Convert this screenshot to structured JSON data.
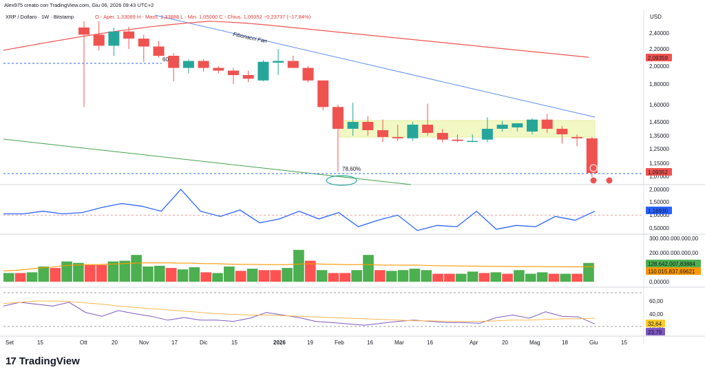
{
  "header": {
    "creator": "Alex975 creato con TradingView.com, Giu 06, 2026 09:43 UTC+2",
    "symbol": "XRP / Dollaro · 1W · Bitstamp",
    "ohlc": "O - Aper. 1,33089  H - Mass. 1,33888  L - Min. 1,05000  C - Chius. 1,09352  −0,23737 (−17,84%)",
    "currency": "USD"
  },
  "annotations": {
    "fibonacci_fan": "Fibonacci Fan",
    "fib_level_60": "60",
    "fib_level_78": "78,60%"
  },
  "price_axis": {
    "ticks": [
      "2,40000",
      "2,20000",
      "2,00000",
      "1,80000",
      "1,60000",
      "1,45000",
      "1,35000",
      "1,25000",
      "1,15000",
      "1,07000"
    ],
    "ma_value": "2,09359",
    "last_price": "1,09352"
  },
  "indicator_axis": {
    "ticks": [
      "2,00000",
      "1,50000",
      "1,00000",
      "0,50000"
    ],
    "current": "1,16930"
  },
  "volume_axis": {
    "ticks": [
      "300.000.000.000,00",
      "200.000.000.000,00",
      "100.000.000.000,00",
      "0,00000"
    ],
    "volume": "128.642.007,83884",
    "volume_ma": "110.015.837,69621"
  },
  "rsi_axis": {
    "ticks": [
      "60,00",
      "40,00",
      "20,00"
    ],
    "ma_value": "32,64",
    "rsi_value": "23,79"
  },
  "time_axis": [
    "Set",
    "15",
    "Ott",
    "20",
    "Nov",
    "17",
    "Dic",
    "15",
    "2026",
    "19",
    "Feb",
    "16",
    "Mar",
    "16",
    "Apr",
    "20",
    "Mag",
    "18",
    "Giu",
    "15"
  ],
  "brand": "TradingView",
  "colors": {
    "up": "#26a69a",
    "down": "#ef5350",
    "ma_line": "#ef5350",
    "fan": "#5b8def",
    "green_line": "#43a047",
    "indicator": "#2962ff",
    "vol_up": "#4caf50",
    "vol_down": "#ff5252",
    "vol_ma": "#ff9800",
    "rsi": "#7e57c2",
    "rsi_ma": "#ffb74d",
    "zone": "#f1f8c4"
  },
  "chart_data": {
    "type": "candlestick",
    "candles": [
      {
        "o": 2.47,
        "h": 2.55,
        "l": 1.58,
        "c": 2.38
      },
      {
        "o": 2.38,
        "h": 2.55,
        "l": 2.18,
        "c": 2.24
      },
      {
        "o": 2.24,
        "h": 2.47,
        "l": 2.12,
        "c": 2.42
      },
      {
        "o": 2.42,
        "h": 2.48,
        "l": 2.2,
        "c": 2.33
      },
      {
        "o": 2.33,
        "h": 2.38,
        "l": 2.05,
        "c": 2.23
      },
      {
        "o": 2.23,
        "h": 2.3,
        "l": 2.1,
        "c": 2.12
      },
      {
        "o": 2.12,
        "h": 2.15,
        "l": 1.83,
        "c": 1.98
      },
      {
        "o": 1.98,
        "h": 2.08,
        "l": 1.92,
        "c": 2.06
      },
      {
        "o": 2.06,
        "h": 2.08,
        "l": 1.94,
        "c": 1.98
      },
      {
        "o": 1.98,
        "h": 2.0,
        "l": 1.92,
        "c": 1.95
      },
      {
        "o": 1.95,
        "h": 1.98,
        "l": 1.8,
        "c": 1.9
      },
      {
        "o": 1.9,
        "h": 1.95,
        "l": 1.82,
        "c": 1.86
      },
      {
        "o": 1.84,
        "h": 2.07,
        "l": 1.83,
        "c": 2.05
      },
      {
        "o": 2.04,
        "h": 2.2,
        "l": 1.9,
        "c": 2.06
      },
      {
        "o": 2.06,
        "h": 2.12,
        "l": 1.98,
        "c": 1.98
      },
      {
        "o": 1.98,
        "h": 2.0,
        "l": 1.82,
        "c": 1.84
      },
      {
        "o": 1.84,
        "h": 1.84,
        "l": 1.55,
        "c": 1.58
      },
      {
        "o": 1.58,
        "h": 1.6,
        "l": 1.1,
        "c": 1.4
      },
      {
        "o": 1.4,
        "h": 1.62,
        "l": 1.35,
        "c": 1.45
      },
      {
        "o": 1.45,
        "h": 1.5,
        "l": 1.35,
        "c": 1.39
      },
      {
        "o": 1.39,
        "h": 1.47,
        "l": 1.3,
        "c": 1.34
      },
      {
        "o": 1.34,
        "h": 1.43,
        "l": 1.31,
        "c": 1.33
      },
      {
        "o": 1.33,
        "h": 1.45,
        "l": 1.31,
        "c": 1.43
      },
      {
        "o": 1.43,
        "h": 1.61,
        "l": 1.35,
        "c": 1.37
      },
      {
        "o": 1.37,
        "h": 1.4,
        "l": 1.3,
        "c": 1.32
      },
      {
        "o": 1.32,
        "h": 1.36,
        "l": 1.3,
        "c": 1.31
      },
      {
        "o": 1.31,
        "h": 1.36,
        "l": 1.3,
        "c": 1.31
      },
      {
        "o": 1.32,
        "h": 1.49,
        "l": 1.3,
        "c": 1.4
      },
      {
        "o": 1.4,
        "h": 1.46,
        "l": 1.38,
        "c": 1.43
      },
      {
        "o": 1.41,
        "h": 1.44,
        "l": 1.38,
        "c": 1.44
      },
      {
        "o": 1.38,
        "h": 1.48,
        "l": 1.36,
        "c": 1.47
      },
      {
        "o": 1.47,
        "h": 1.52,
        "l": 1.37,
        "c": 1.4
      },
      {
        "o": 1.4,
        "h": 1.42,
        "l": 1.29,
        "c": 1.36
      },
      {
        "o": 1.34,
        "h": 1.36,
        "l": 1.27,
        "c": 1.33
      },
      {
        "o": 1.33,
        "h": 1.34,
        "l": 1.05,
        "c": 1.09
      }
    ],
    "indicator": [
      1.05,
      0.95,
      1.05,
      1.7,
      1.15,
      1.1,
      1.05,
      1.35,
      1.1,
      0.8,
      1.3,
      1.05,
      1.45,
      1.55,
      1.35,
      1.1,
      1.15,
      1.35,
      2.0,
      1.35,
      1.15,
      1.25,
      0.95,
      1.35,
      1.2,
      0.95,
      0.7,
      0.75,
      0.85,
      0.65,
      1.15,
      1.05,
      0.85,
      1.2,
      1.1,
      0.75,
      0.55,
      0.7,
      0.8,
      0.85,
      1.0,
      0.7,
      0.4,
      0.55,
      0.6,
      0.75,
      0.55,
      0.95,
      1.15,
      0.75,
      0.45,
      0.5,
      0.6,
      0.65,
      0.55,
      0.9,
      0.95,
      0.7,
      0.8,
      0.85,
      1.15
    ],
    "volume": [
      60,
      60,
      65,
      105,
      95,
      140,
      130,
      115,
      115,
      140,
      145,
      185,
      105,
      110,
      95,
      85,
      100,
      65,
      60,
      105,
      75,
      90,
      80,
      80,
      95,
      220,
      145,
      80,
      60,
      60,
      80,
      185,
      80,
      75,
      80,
      90,
      80,
      55,
      55,
      55,
      70,
      60,
      65,
      55,
      80,
      55,
      65,
      55,
      55,
      55,
      130
    ],
    "volume_ma": [
      75,
      78,
      85,
      95,
      100,
      110,
      115,
      118,
      118,
      122,
      125,
      128,
      130,
      130,
      130,
      128,
      128,
      125,
      125,
      122,
      120,
      120,
      118,
      118,
      118,
      122,
      125,
      122,
      120,
      118,
      118,
      118,
      115,
      115,
      115,
      115,
      112,
      110,
      110,
      108,
      108,
      106,
      106,
      105,
      105,
      105,
      104,
      104,
      103,
      103,
      105
    ],
    "rsi": [
      52,
      58,
      55,
      52,
      58,
      42,
      36,
      45,
      40,
      36,
      30,
      34,
      30,
      30,
      28,
      33,
      42,
      38,
      34,
      28,
      26,
      24,
      22,
      25,
      28,
      30,
      28,
      26,
      26,
      25,
      34,
      38,
      33,
      43,
      36,
      35,
      24
    ],
    "rsi_ma": [
      56,
      58,
      60,
      60,
      59,
      57,
      55,
      52,
      50,
      48,
      46,
      44,
      42,
      40,
      39,
      38,
      38,
      37,
      36,
      35,
      34,
      33,
      32,
      31,
      30,
      29,
      29,
      28,
      28,
      28,
      29,
      30,
      30,
      31,
      32,
      32,
      33
    ]
  }
}
